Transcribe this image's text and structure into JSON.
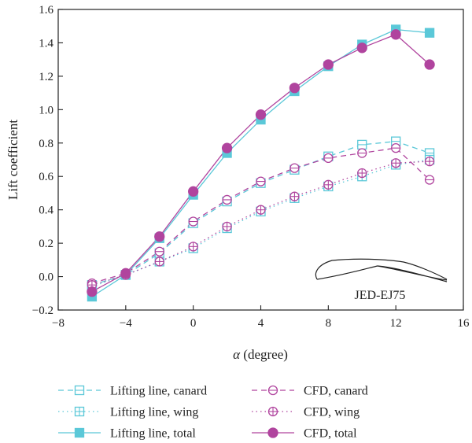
{
  "chart_data": {
    "type": "line",
    "xlabel_symbol": "α",
    "xlabel_unit": " (degree)",
    "ylabel": "Lift coefficient",
    "xlim": [
      -8,
      16
    ],
    "ylim": [
      -0.2,
      1.6
    ],
    "xticks": [
      -8,
      -4,
      0,
      4,
      8,
      12,
      16
    ],
    "yticks": [
      -0.2,
      0.0,
      0.2,
      0.4,
      0.6,
      0.8,
      1.0,
      1.2,
      1.4,
      1.6
    ],
    "xtick_labels": [
      "−8",
      "−4",
      "0",
      "4",
      "8",
      "12",
      "16"
    ],
    "ytick_labels": [
      "−0.2",
      "0.0",
      "0.2",
      "0.4",
      "0.6",
      "0.8",
      "1.0",
      "1.2",
      "1.4",
      "1.6"
    ],
    "grid": false,
    "legend_position": "bottom",
    "annotation": "JED-EJ75",
    "x": [
      -6,
      -4,
      -2,
      0,
      2,
      4,
      6,
      8,
      10,
      12,
      14
    ],
    "series": [
      {
        "name": "Lifting line, canard",
        "color": "#5bc8d8",
        "dash": "dashed",
        "marker": "square-minus",
        "values": [
          -0.05,
          0.01,
          0.14,
          0.32,
          0.45,
          0.56,
          0.64,
          0.72,
          0.79,
          0.81,
          0.74
        ]
      },
      {
        "name": "Lifting line, wing",
        "color": "#5bc8d8",
        "dash": "dotted",
        "marker": "square-plus",
        "values": [
          -0.06,
          0.01,
          0.09,
          0.17,
          0.29,
          0.39,
          0.47,
          0.54,
          0.6,
          0.67,
          0.7
        ]
      },
      {
        "name": "Lifting line, total",
        "color": "#5bc8d8",
        "dash": "solid",
        "marker": "square-filled",
        "values": [
          -0.12,
          0.01,
          0.23,
          0.49,
          0.74,
          0.94,
          1.11,
          1.26,
          1.39,
          1.48,
          1.46
        ]
      },
      {
        "name": "CFD, canard",
        "color": "#b0449e",
        "dash": "dashed",
        "marker": "circle-minus",
        "values": [
          -0.04,
          0.02,
          0.15,
          0.33,
          0.46,
          0.57,
          0.65,
          0.71,
          0.74,
          0.77,
          0.58
        ]
      },
      {
        "name": "CFD, wing",
        "color": "#b0449e",
        "dash": "dotted",
        "marker": "circle-plus",
        "values": [
          -0.05,
          0.01,
          0.09,
          0.18,
          0.3,
          0.4,
          0.48,
          0.55,
          0.62,
          0.68,
          0.69
        ]
      },
      {
        "name": "CFD, total",
        "color": "#b0449e",
        "dash": "solid",
        "marker": "circle-filled",
        "values": [
          -0.09,
          0.02,
          0.24,
          0.51,
          0.77,
          0.97,
          1.13,
          1.27,
          1.37,
          1.45,
          1.27
        ]
      }
    ]
  }
}
